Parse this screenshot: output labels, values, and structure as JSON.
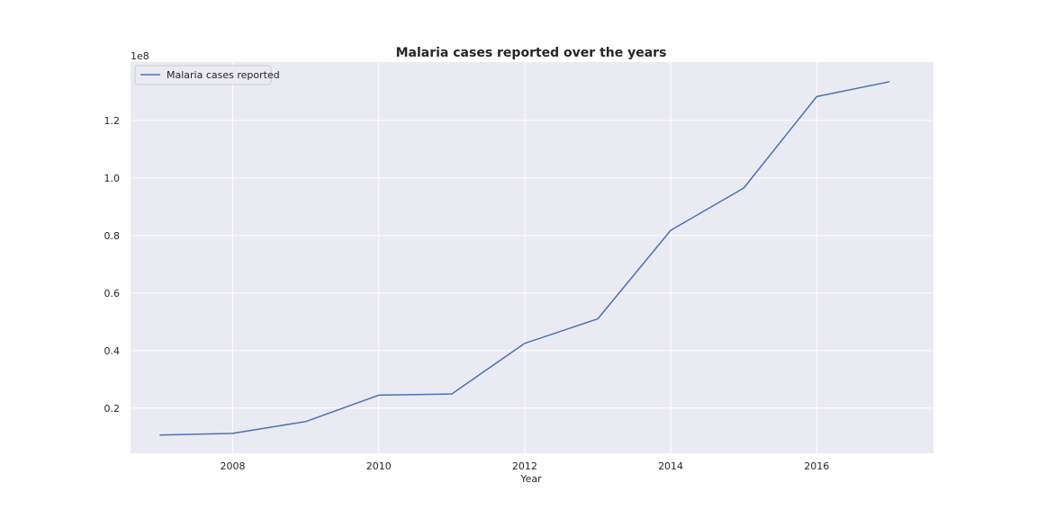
{
  "chart_data": {
    "type": "line",
    "title": "Malaria cases reported over the years",
    "xlabel": "Year",
    "ylabel": "",
    "y_scale_note": "1e8",
    "x": [
      2007,
      2008,
      2009,
      2010,
      2011,
      2012,
      2013,
      2014,
      2015,
      2016,
      2017
    ],
    "series": [
      {
        "name": "Malaria cases reported",
        "color": "#4c72b0",
        "values": [
          10600000,
          11200000,
          15300000,
          24500000,
          24900000,
          42500000,
          51000000,
          81800000,
          96500000,
          128300000,
          133500000
        ]
      }
    ],
    "xlim": [
      2006.6,
      2017.6
    ],
    "ylim": [
      4300000,
      140300000
    ],
    "x_ticks": [
      2008,
      2010,
      2012,
      2014,
      2016
    ],
    "x_tick_labels": [
      "2008",
      "2010",
      "2012",
      "2014",
      "2016"
    ],
    "y_ticks": [
      20000000,
      40000000,
      60000000,
      80000000,
      100000000,
      120000000
    ],
    "y_tick_labels": [
      "0.2",
      "0.4",
      "0.6",
      "0.8",
      "1.0",
      "1.2"
    ],
    "grid": true,
    "legend_position": "top-left",
    "background": "#eaeaf2"
  }
}
